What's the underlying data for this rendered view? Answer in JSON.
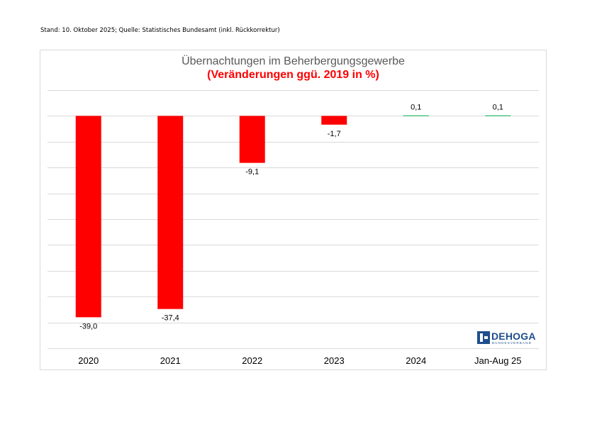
{
  "header": {
    "note": "Stand: 10. Oktober 2025; Quelle: Statistisches Bundesamt (inkl. Rückkorrektur)"
  },
  "logo": {
    "name": "DEHOGA",
    "subtitle": "BUNDESVERBAND"
  },
  "colors": {
    "negative": "#ff0000",
    "positive": "#00b050",
    "grid": "#d9d9d9",
    "title": "#595959",
    "subtitle": "#ff0000",
    "brand": "#1f4e8c"
  },
  "chart_data": {
    "type": "bar",
    "title": "Übernachtungen im Beherbergungsgewerbe",
    "subtitle": "(Veränderungen ggü. 2019 in %)",
    "categories": [
      "2020",
      "2021",
      "2022",
      "2023",
      "2024",
      "Jan-Aug 25"
    ],
    "values": [
      -39.0,
      -37.4,
      -9.1,
      -1.7,
      0.1,
      0.1
    ],
    "value_labels": [
      "-39,0",
      "-37,4",
      "-9,1",
      "-1,7",
      "0,1",
      "0,1"
    ],
    "ylim": [
      -45,
      5
    ],
    "ystep": 5,
    "grid": true,
    "xlabel": "",
    "ylabel": ""
  }
}
